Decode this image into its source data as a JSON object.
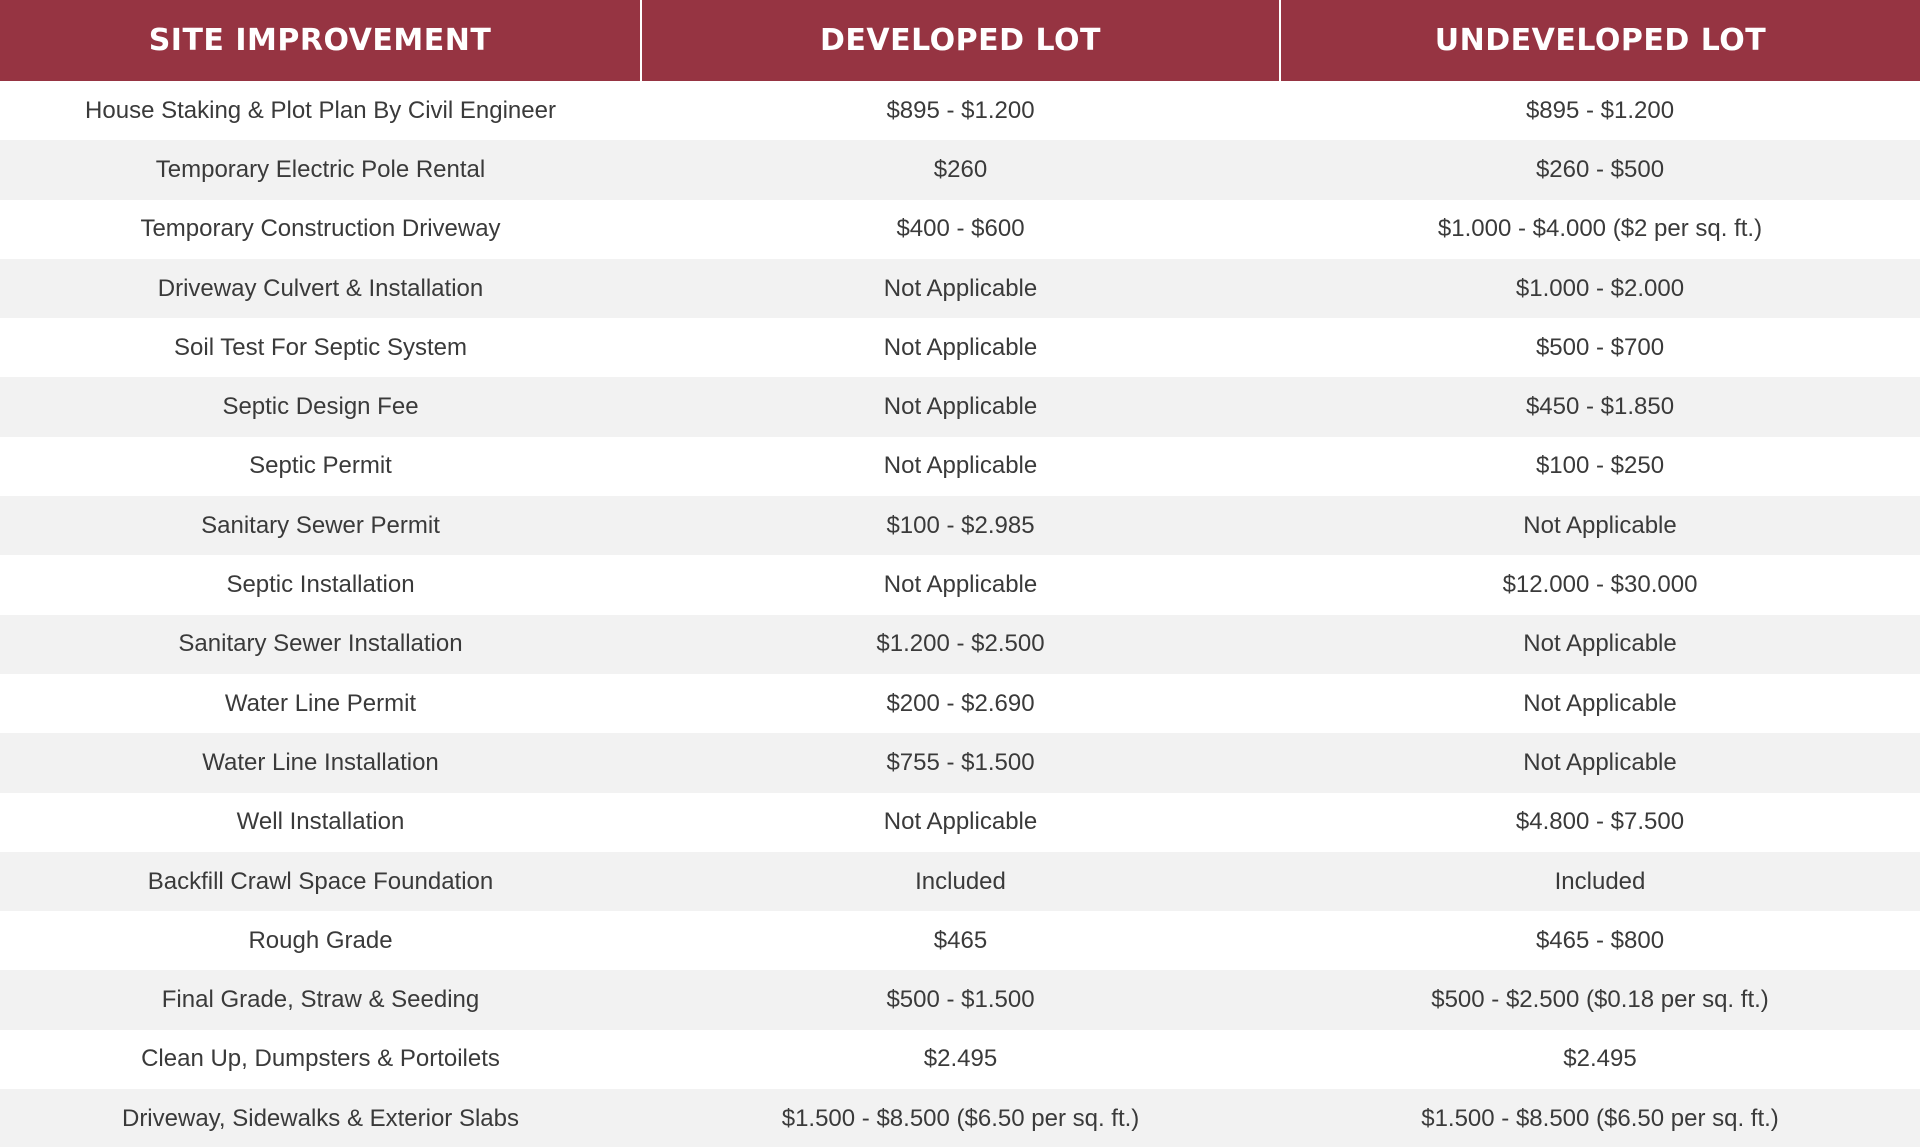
{
  "table": {
    "headers": [
      "SITE IMPROVEMENT",
      "DEVELOPED LOT",
      "UNDEVELOPED LOT"
    ],
    "rows": [
      [
        "House Staking & Plot Plan By Civil Engineer",
        "$895 - $1.200",
        "$895 - $1.200"
      ],
      [
        "Temporary Electric Pole Rental",
        "$260",
        "$260 - $500"
      ],
      [
        "Temporary Construction Driveway",
        "$400 - $600",
        "$1.000 - $4.000 ($2 per sq. ft.)"
      ],
      [
        "Driveway Culvert & Installation",
        "Not Applicable",
        "$1.000 - $2.000"
      ],
      [
        "Soil Test For Septic System",
        "Not Applicable",
        "$500 - $700"
      ],
      [
        "Septic Design Fee",
        "Not Applicable",
        "$450 - $1.850"
      ],
      [
        "Septic Permit",
        "Not Applicable",
        "$100 - $250"
      ],
      [
        "Sanitary Sewer Permit",
        "$100 - $2.985",
        "Not Applicable"
      ],
      [
        "Septic Installation",
        "Not Applicable",
        "$12.000 - $30.000"
      ],
      [
        "Sanitary Sewer Installation",
        "$1.200 - $2.500",
        "Not Applicable"
      ],
      [
        "Water Line Permit",
        "$200 - $2.690",
        "Not Applicable"
      ],
      [
        "Water Line Installation",
        "$755 - $1.500",
        "Not Applicable"
      ],
      [
        "Well Installation",
        "Not Applicable",
        "$4.800 - $7.500"
      ],
      [
        "Backfill Crawl Space Foundation",
        "Included",
        "Included"
      ],
      [
        "Rough Grade",
        "$465",
        "$465 - $800"
      ],
      [
        "Final Grade, Straw & Seeding",
        "$500 - $1.500",
        "$500 - $2.500 ($0.18 per sq. ft.)"
      ],
      [
        "Clean Up, Dumpsters & Portoilets",
        "$2.495",
        "$2.495"
      ],
      [
        "Driveway, Sidewalks & Exterior Slabs",
        "$1.500 - $8.500 ($6.50 per sq. ft.)",
        "$1.500 - $8.500 ($6.50 per sq. ft.)"
      ]
    ]
  },
  "colors": {
    "header_background": "#963442",
    "header_text": "#ffffff",
    "row_alt_background": "#f2f2f2",
    "body_text": "#3a3a3a"
  }
}
